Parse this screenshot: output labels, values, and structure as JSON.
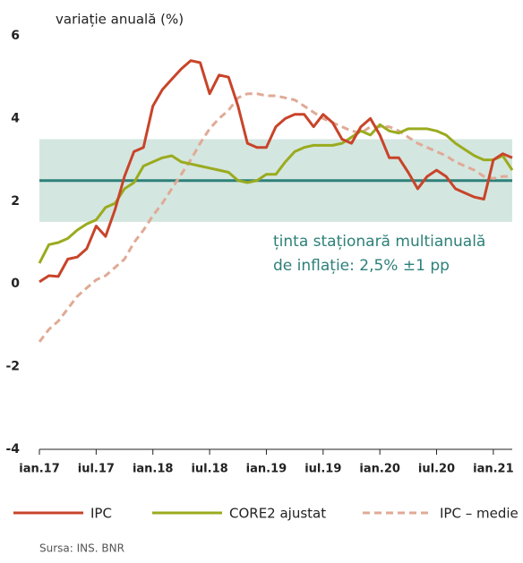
{
  "chart_data": {
    "type": "line",
    "ylabel": "variație anuală (%)",
    "categories": [
      "ian.17",
      null,
      null,
      null,
      null,
      null,
      "iul.17",
      null,
      null,
      null,
      null,
      null,
      "ian.18",
      null,
      null,
      null,
      null,
      null,
      "iul.18",
      null,
      null,
      null,
      null,
      null,
      "ian.19",
      null,
      null,
      null,
      null,
      null,
      "iul.19",
      null,
      null,
      null,
      null,
      null,
      "ian.20",
      null,
      null,
      null,
      null,
      null,
      "iul.20",
      null,
      null,
      null,
      null,
      null,
      "ian.21",
      null,
      null
    ],
    "series": [
      {
        "name": "IPC",
        "color": "#c8442a",
        "dashed": false,
        "values": [
          0.05,
          0.2,
          0.18,
          0.6,
          0.65,
          0.85,
          1.4,
          1.15,
          1.8,
          2.6,
          3.2,
          3.3,
          4.3,
          4.7,
          4.95,
          5.2,
          5.4,
          5.35,
          4.6,
          5.05,
          5.0,
          4.3,
          3.4,
          3.3,
          3.3,
          3.8,
          4.0,
          4.1,
          4.1,
          3.8,
          4.1,
          3.9,
          3.5,
          3.4,
          3.8,
          4.0,
          3.6,
          3.05,
          3.05,
          2.7,
          2.3,
          2.6,
          2.75,
          2.6,
          2.3,
          2.2,
          2.1,
          2.05,
          3.0,
          3.15,
          3.05
        ]
      },
      {
        "name": "CORE2 ajustat",
        "color": "#9aab1e",
        "dashed": false,
        "values": [
          0.5,
          0.95,
          1.0,
          1.1,
          1.3,
          1.45,
          1.55,
          1.85,
          1.95,
          2.3,
          2.45,
          2.85,
          2.95,
          3.05,
          3.1,
          2.95,
          2.9,
          2.85,
          2.8,
          2.75,
          2.7,
          2.5,
          2.45,
          2.5,
          2.65,
          2.65,
          2.95,
          3.2,
          3.3,
          3.35,
          3.35,
          3.35,
          3.4,
          3.55,
          3.7,
          3.6,
          3.85,
          3.7,
          3.65,
          3.75,
          3.75,
          3.75,
          3.7,
          3.6,
          3.4,
          3.25,
          3.1,
          3.0,
          3.0,
          3.1,
          2.75
        ]
      },
      {
        "name": "IPC – medie",
        "color": "#e0aa96",
        "dashed": true,
        "values": [
          -1.4,
          -1.1,
          -0.9,
          -0.6,
          -0.3,
          -0.1,
          0.1,
          0.2,
          0.4,
          0.6,
          1.0,
          1.3,
          1.65,
          1.95,
          2.3,
          2.65,
          3.0,
          3.4,
          3.75,
          4.0,
          4.2,
          4.5,
          4.6,
          4.6,
          4.55,
          4.55,
          4.5,
          4.45,
          4.3,
          4.15,
          4.0,
          3.9,
          3.8,
          3.7,
          3.65,
          3.8,
          3.8,
          3.8,
          3.7,
          3.55,
          3.4,
          3.3,
          3.2,
          3.1,
          2.95,
          2.85,
          2.75,
          2.6,
          2.55,
          2.6,
          2.6
        ]
      }
    ],
    "target": 2.5,
    "target_color": "#2d8079",
    "target_band": [
      1.5,
      3.5
    ],
    "band_color": "#d4e6e0",
    "annotation": [
      "ținta staționară multianuală",
      "de inflație: 2,5% ±1 pp"
    ],
    "ylim": [
      -4,
      6
    ],
    "yticks": [
      -4,
      -2,
      0,
      2,
      4,
      6
    ],
    "source": "Sursa: INS. BNR"
  }
}
